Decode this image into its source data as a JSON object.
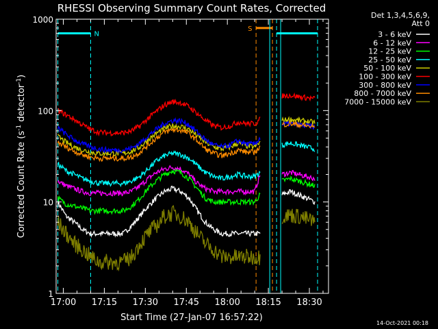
{
  "chart_data": {
    "type": "line",
    "title": "RHESSI Observing Summary Count Rates, Corrected",
    "xlabel": "Start Time (27-Jan-07 16:57:22)",
    "ylabel": "Corrected Count Rate (s",
    "ylabel_sup1": "-1",
    "ylabel_mid": " detector",
    "ylabel_sup2": "-1",
    "ylabel_end": ")",
    "yscale": "log",
    "ylim": [
      1,
      1000
    ],
    "xlim": [
      "16:57:22",
      "18:37:00"
    ],
    "y_ticks": [
      {
        "value": 1,
        "label": "1"
      },
      {
        "value": 10,
        "label": "10"
      },
      {
        "value": 100,
        "label": "100"
      },
      {
        "value": 1000,
        "label": "1000"
      }
    ],
    "x_ticks": [
      "17:00",
      "17:15",
      "17:30",
      "17:45",
      "18:00",
      "18:15",
      "18:30"
    ],
    "legend_header": [
      "Det 1,3,4,5,6,9,",
      "Att 0"
    ],
    "legend_position": "right",
    "timestamp": "14-Oct-2021 00:18",
    "status_bars": [
      {
        "label": "N",
        "start": "16:58:00",
        "end": "17:10:00",
        "level": 700,
        "color": "#00ffff"
      },
      {
        "label": "S",
        "start": "18:10:30",
        "end": "18:16:30",
        "level": 800,
        "color": "#ff8c00"
      },
      {
        "label": "",
        "start": "18:18:00",
        "end": "18:33:00",
        "level": 700,
        "color": "#00ffff"
      }
    ],
    "data_gaps": [
      [
        "18:15:30",
        "18:19:30"
      ]
    ],
    "x": [
      "16:58",
      "17:01",
      "17:04",
      "17:07",
      "17:10",
      "17:13",
      "17:16",
      "17:19",
      "17:22",
      "17:25",
      "17:28",
      "17:31",
      "17:34",
      "17:37",
      "17:40",
      "17:43",
      "17:46",
      "17:49",
      "17:52",
      "17:55",
      "17:58",
      "18:01",
      "18:04",
      "18:07",
      "18:10",
      "18:12",
      "18:20",
      "18:23",
      "18:26",
      "18:29",
      "18:32"
    ],
    "series": [
      {
        "name": "3 - 6 keV",
        "color": "#ffffff",
        "values": [
          10,
          7,
          6,
          5,
          4.5,
          4.5,
          4.5,
          4.5,
          4.5,
          5.5,
          7,
          9,
          11,
          13,
          14,
          13,
          11,
          8,
          6,
          5,
          4.5,
          4.5,
          4.5,
          4.5,
          4.5,
          4.5,
          12,
          13,
          12,
          11,
          10
        ]
      },
      {
        "name": "6 - 12 keV",
        "color": "#ff00ff",
        "values": [
          17,
          15,
          14,
          13,
          12.5,
          12.5,
          12.5,
          12.5,
          12.5,
          13,
          15,
          18,
          21,
          23,
          24,
          23,
          20,
          16,
          14,
          13,
          13,
          13,
          13,
          13,
          13,
          20,
          20,
          21,
          20,
          19,
          18
        ]
      },
      {
        "name": "12 - 25 keV",
        "color": "#00ff00",
        "values": [
          11,
          9.5,
          9,
          8.5,
          8,
          8,
          8,
          8,
          8,
          9,
          11,
          14,
          17,
          20,
          22,
          21,
          18,
          14,
          11,
          10,
          10,
          10,
          10,
          10,
          10,
          12,
          17,
          18,
          17,
          16,
          15
        ]
      },
      {
        "name": "25 - 50 keV",
        "color": "#00ffff",
        "values": [
          26,
          22,
          20,
          18,
          17,
          16,
          16,
          16,
          16,
          17,
          19,
          23,
          28,
          32,
          34,
          33,
          30,
          25,
          21,
          19,
          18,
          19,
          20,
          19,
          19,
          21,
          42,
          44,
          42,
          40,
          38
        ]
      },
      {
        "name": "50 - 100 keV",
        "color": "#cccc00",
        "values": [
          52,
          45,
          40,
          37,
          35,
          34,
          34,
          34,
          34,
          36,
          40,
          48,
          56,
          64,
          68,
          67,
          62,
          53,
          45,
          40,
          38,
          40,
          44,
          41,
          40,
          45,
          78,
          80,
          78,
          76,
          74
        ]
      },
      {
        "name": "100 - 300 keV",
        "color": "#ff0000",
        "values": [
          100,
          90,
          80,
          70,
          62,
          58,
          57,
          57,
          57,
          60,
          68,
          82,
          98,
          115,
          125,
          122,
          110,
          93,
          78,
          68,
          65,
          68,
          75,
          72,
          72,
          80,
          145,
          147,
          142,
          138,
          135
        ]
      },
      {
        "name": "300 - 800 keV",
        "color": "#0000ff",
        "values": [
          65,
          55,
          48,
          43,
          40,
          38,
          37,
          37,
          37,
          39,
          44,
          53,
          62,
          72,
          78,
          77,
          70,
          58,
          48,
          42,
          40,
          42,
          47,
          43,
          43,
          50,
          70,
          72,
          70,
          68,
          66
        ]
      },
      {
        "name": "800 - 7000 keV",
        "color": "#ff8c00",
        "values": [
          45,
          40,
          36,
          33,
          31,
          30,
          30,
          30,
          30,
          31,
          35,
          42,
          50,
          58,
          62,
          61,
          56,
          47,
          38,
          34,
          32,
          34,
          37,
          35,
          35,
          40,
          70,
          72,
          70,
          68,
          66
        ]
      },
      {
        "name": "7000 - 15000 keV",
        "color": "#808000",
        "values": [
          6,
          4.5,
          3.5,
          3,
          2.5,
          2.2,
          2.2,
          2.2,
          2.2,
          2.5,
          3.5,
          4.5,
          5.5,
          7,
          7.5,
          7,
          6,
          4.5,
          3.5,
          3,
          2.5,
          2.5,
          2.5,
          2.5,
          2.5,
          2.5,
          7,
          7.2,
          7,
          6.5,
          6
        ]
      }
    ]
  }
}
